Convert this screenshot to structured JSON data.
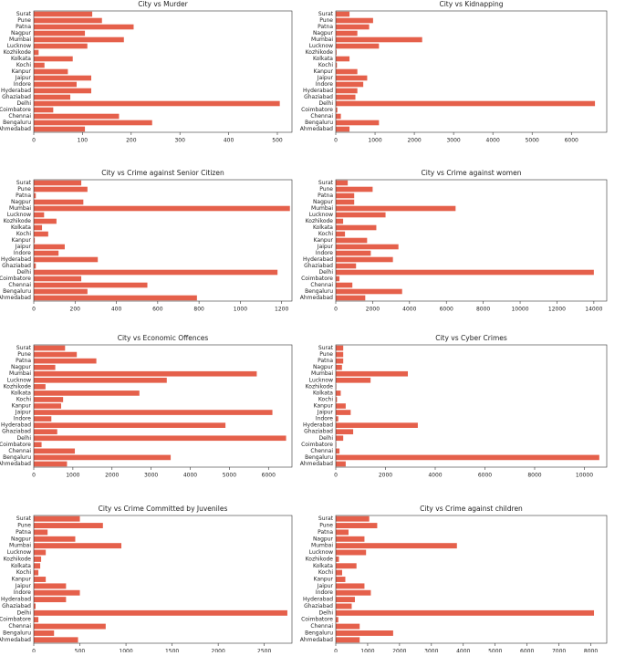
{
  "chart_data": [
    {
      "type": "bar",
      "title": "City vs Murder",
      "categories": [
        "Ahmedabad",
        "Bengaluru",
        "Chennai",
        "Coimbatore",
        "Delhi",
        "Ghaziabad",
        "Hyderabad",
        "Indore",
        "Jaipur",
        "Kanpur",
        "Kochi",
        "Kolkata",
        "Kozhikode",
        "Lucknow",
        "Mumbai",
        "Nagpur",
        "Patna",
        "Pune",
        "Surat"
      ],
      "values": [
        105,
        243,
        175,
        40,
        505,
        75,
        118,
        88,
        118,
        70,
        22,
        80,
        10,
        110,
        185,
        105,
        205,
        140,
        120
      ],
      "color": "#e5604b",
      "xlim": [
        0,
        530
      ],
      "xticks": [
        0,
        100,
        200,
        300,
        400,
        500
      ]
    },
    {
      "type": "bar",
      "title": "City vs Kidnapping",
      "categories": [
        "Ahmedabad",
        "Bengaluru",
        "Chennai",
        "Coimbatore",
        "Delhi",
        "Ghaziabad",
        "Hyderabad",
        "Indore",
        "Jaipur",
        "Kanpur",
        "Kochi",
        "Kolkata",
        "Kozhikode",
        "Lucknow",
        "Mumbai",
        "Nagpur",
        "Patna",
        "Pune",
        "Surat"
      ],
      "values": [
        350,
        1100,
        130,
        40,
        6600,
        500,
        550,
        700,
        800,
        550,
        30,
        350,
        20,
        1100,
        2200,
        550,
        850,
        950,
        350
      ],
      "color": "#e5604b",
      "xlim": [
        0,
        6900
      ],
      "xticks": [
        0,
        1000,
        2000,
        3000,
        4000,
        5000,
        6000
      ]
    },
    {
      "type": "bar",
      "title": "City vs Crime against Senior Citizen",
      "categories": [
        "Ahmedabad",
        "Bengaluru",
        "Chennai",
        "Coimbatore",
        "Delhi",
        "Ghaziabad",
        "Hyderabad",
        "Indore",
        "Jaipur",
        "Kanpur",
        "Kochi",
        "Kolkata",
        "Kozhikode",
        "Lucknow",
        "Mumbai",
        "Nagpur",
        "Patna",
        "Pune",
        "Surat"
      ],
      "values": [
        790,
        260,
        550,
        230,
        1180,
        10,
        310,
        120,
        150,
        5,
        70,
        40,
        110,
        50,
        1240,
        240,
        10,
        260,
        230
      ],
      "color": "#e5604b",
      "xlim": [
        0,
        1250
      ],
      "xticks": [
        0,
        200,
        400,
        600,
        800,
        1000,
        1200
      ]
    },
    {
      "type": "bar",
      "title": "City vs Crime against women",
      "categories": [
        "Ahmedabad",
        "Bengaluru",
        "Chennai",
        "Coimbatore",
        "Delhi",
        "Ghaziabad",
        "Hyderabad",
        "Indore",
        "Jaipur",
        "Kanpur",
        "Kochi",
        "Kolkata",
        "Kozhikode",
        "Lucknow",
        "Mumbai",
        "Nagpur",
        "Patna",
        "Pune",
        "Surat"
      ],
      "values": [
        1600,
        3600,
        900,
        200,
        14000,
        1100,
        3100,
        1900,
        3400,
        1700,
        500,
        2200,
        400,
        2700,
        6500,
        1000,
        1000,
        2000,
        650
      ],
      "color": "#e5604b",
      "xlim": [
        0,
        14700
      ],
      "xticks": [
        0,
        2000,
        4000,
        6000,
        8000,
        10000,
        12000,
        14000
      ]
    },
    {
      "type": "bar",
      "title": "City vs Economic Offences",
      "categories": [
        "Ahmedabad",
        "Bengaluru",
        "Chennai",
        "Coimbatore",
        "Delhi",
        "Ghaziabad",
        "Hyderabad",
        "Indore",
        "Jaipur",
        "Kanpur",
        "Kochi",
        "Kolkata",
        "Kozhikode",
        "Lucknow",
        "Mumbai",
        "Nagpur",
        "Patna",
        "Pune",
        "Surat"
      ],
      "values": [
        850,
        3500,
        1050,
        200,
        6450,
        600,
        4900,
        450,
        6100,
        700,
        750,
        2700,
        300,
        3400,
        5700,
        550,
        1600,
        1100,
        800
      ],
      "color": "#e5604b",
      "xlim": [
        0,
        6600
      ],
      "xticks": [
        0,
        1000,
        2000,
        3000,
        4000,
        5000,
        6000
      ]
    },
    {
      "type": "bar",
      "title": "City vs Cyber Crimes",
      "categories": [
        "Ahmedabad",
        "Bengaluru",
        "Chennai",
        "Coimbatore",
        "Delhi",
        "Ghaziabad",
        "Hyderabad",
        "Indore",
        "Jaipur",
        "Kanpur",
        "Kochi",
        "Kolkata",
        "Kozhikode",
        "Lucknow",
        "Mumbai",
        "Nagpur",
        "Patna",
        "Pune",
        "Surat"
      ],
      "values": [
        400,
        10600,
        150,
        20,
        300,
        700,
        3300,
        100,
        600,
        400,
        50,
        200,
        20,
        1400,
        2900,
        250,
        300,
        300,
        300
      ],
      "color": "#e5604b",
      "xlim": [
        0,
        10900
      ],
      "xticks": [
        0,
        2000,
        4000,
        6000,
        8000,
        10000
      ]
    },
    {
      "type": "bar",
      "title": "City vs Crime Committed by Juveniles",
      "categories": [
        "Ahmedabad",
        "Bengaluru",
        "Chennai",
        "Coimbatore",
        "Delhi",
        "Ghaziabad",
        "Hyderabad",
        "Indore",
        "Jaipur",
        "Kanpur",
        "Kochi",
        "Kolkata",
        "Kozhikode",
        "Lucknow",
        "Mumbai",
        "Nagpur",
        "Patna",
        "Pune",
        "Surat"
      ],
      "values": [
        480,
        220,
        780,
        50,
        2750,
        20,
        350,
        500,
        350,
        130,
        50,
        70,
        80,
        130,
        950,
        450,
        150,
        750,
        500
      ],
      "color": "#e5604b",
      "xlim": [
        0,
        2800
      ],
      "xticks": [
        0,
        500,
        1000,
        1500,
        2000,
        2500
      ]
    },
    {
      "type": "bar",
      "title": "City vs Crime against children",
      "categories": [
        "Ahmedabad",
        "Bengaluru",
        "Chennai",
        "Coimbatore",
        "Delhi",
        "Ghaziabad",
        "Hyderabad",
        "Indore",
        "Jaipur",
        "Kanpur",
        "Kochi",
        "Kolkata",
        "Kozhikode",
        "Lucknow",
        "Mumbai",
        "Nagpur",
        "Patna",
        "Pune",
        "Surat"
      ],
      "values": [
        750,
        1800,
        750,
        80,
        8100,
        500,
        600,
        1100,
        900,
        300,
        200,
        650,
        100,
        950,
        3800,
        900,
        400,
        1300,
        1050
      ],
      "color": "#e5604b",
      "xlim": [
        0,
        8500
      ],
      "xticks": [
        0,
        1000,
        2000,
        3000,
        4000,
        5000,
        6000,
        7000,
        8000
      ]
    }
  ]
}
